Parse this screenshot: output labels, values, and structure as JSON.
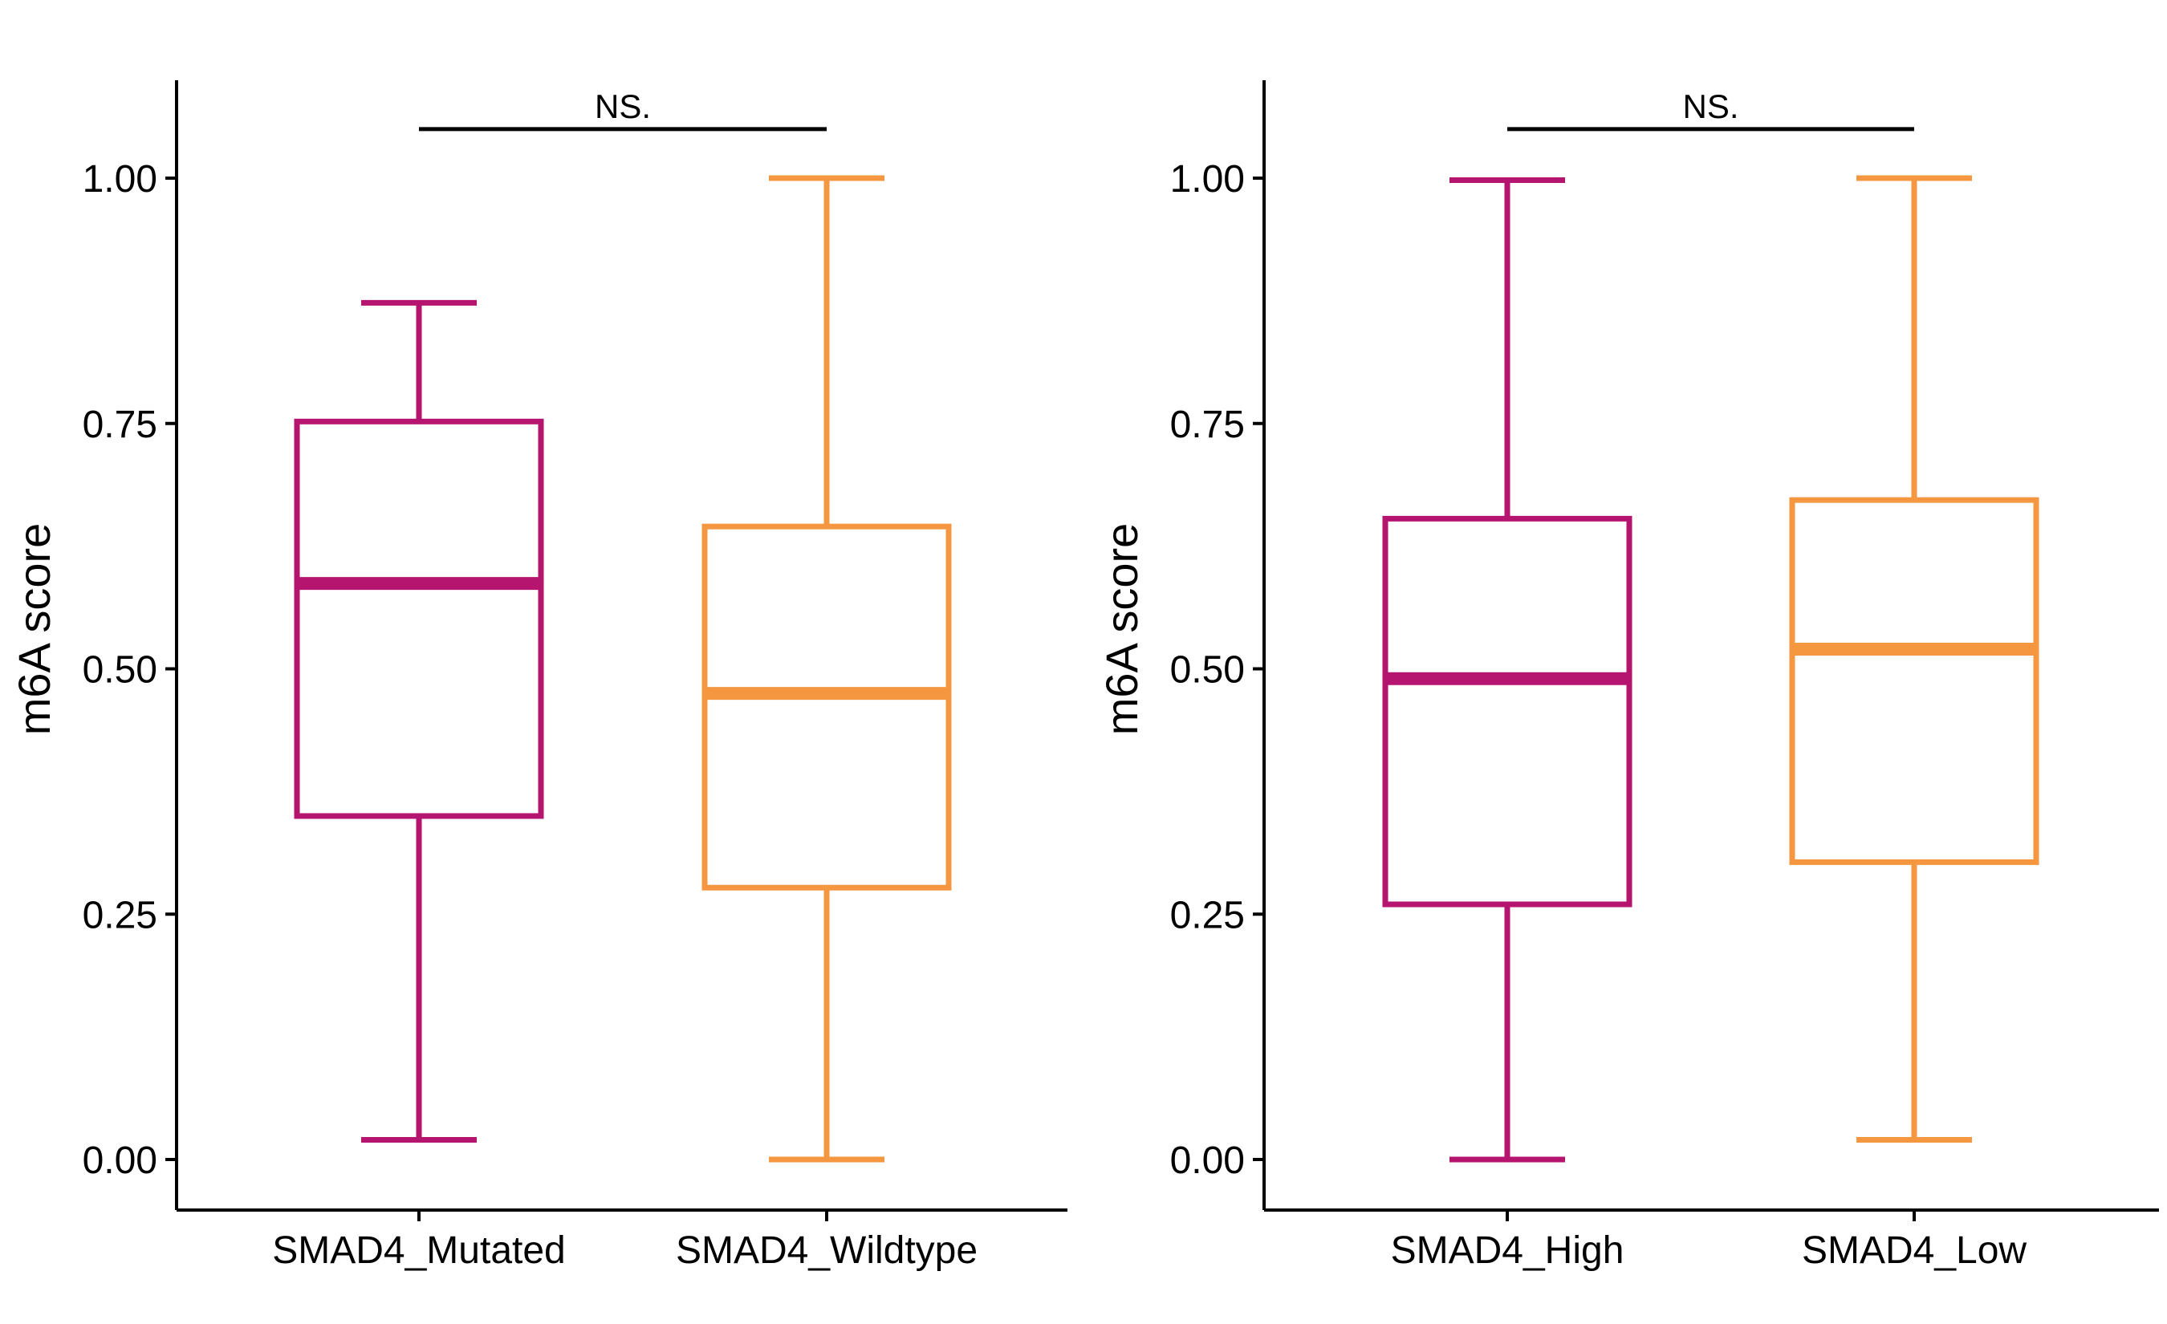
{
  "chart_data": [
    {
      "type": "box",
      "title": "",
      "xlabel": "",
      "ylabel": "m6A score",
      "ylim": [
        -0.1,
        1.1
      ],
      "yticks": [
        0.0,
        0.25,
        0.5,
        0.75,
        1.0
      ],
      "ytick_labels": [
        "0.00",
        "0.25",
        "0.50",
        "0.75",
        "1.00"
      ],
      "grid": false,
      "categories": [
        "SMAD4_Mutated",
        "SMAD4_Wildtype"
      ],
      "boxes": [
        {
          "category": "SMAD4_Mutated",
          "whisker_low": 0.02,
          "q1": 0.35,
          "median": 0.587,
          "q3": 0.752,
          "whisker_high": 0.873,
          "color": "#B5156E"
        },
        {
          "category": "SMAD4_Wildtype",
          "whisker_low": 0.0,
          "q1": 0.277,
          "median": 0.475,
          "q3": 0.645,
          "whisker_high": 1.0,
          "color": "#F59740"
        }
      ],
      "significance": {
        "label": "NS.",
        "y": 1.05
      }
    },
    {
      "type": "box",
      "title": "",
      "xlabel": "",
      "ylabel": "m6A score",
      "ylim": [
        -0.1,
        1.1
      ],
      "yticks": [
        0.0,
        0.25,
        0.5,
        0.75,
        1.0
      ],
      "ytick_labels": [
        "0.00",
        "0.25",
        "0.50",
        "0.75",
        "1.00"
      ],
      "grid": false,
      "categories": [
        "SMAD4_High",
        "SMAD4_Low"
      ],
      "boxes": [
        {
          "category": "SMAD4_High",
          "whisker_low": 0.0,
          "q1": 0.26,
          "median": 0.49,
          "q3": 0.653,
          "whisker_high": 0.998,
          "color": "#B5156E"
        },
        {
          "category": "SMAD4_Low",
          "whisker_low": 0.02,
          "q1": 0.303,
          "median": 0.52,
          "q3": 0.672,
          "whisker_high": 1.0,
          "color": "#F59740"
        }
      ],
      "significance": {
        "label": "NS.",
        "y": 1.05
      }
    }
  ]
}
